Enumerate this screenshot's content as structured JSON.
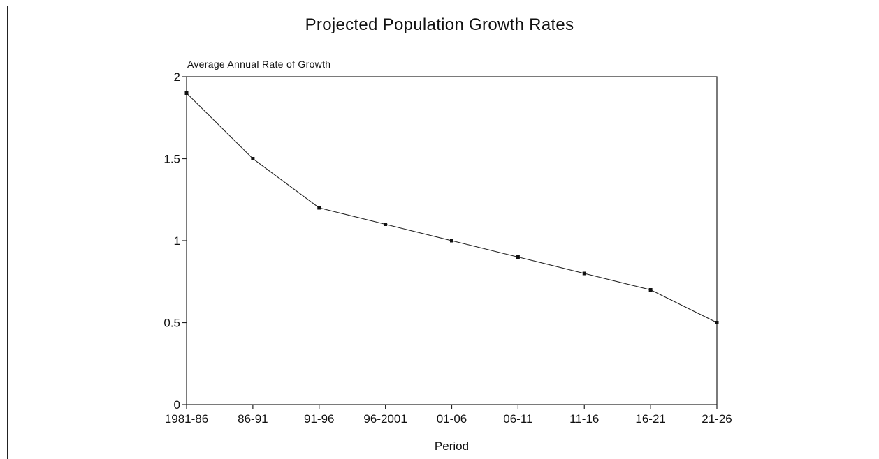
{
  "chart_data": {
    "type": "line",
    "title": "Projected Population Growth Rates",
    "ylabel": "Average Annual Rate of Growth",
    "xlabel": "Period",
    "categories": [
      "1981-86",
      "86-91",
      "91-96",
      "96-2001",
      "01-06",
      "06-11",
      "11-16",
      "16-21",
      "21-26"
    ],
    "values": [
      1.9,
      1.5,
      1.2,
      1.1,
      1.0,
      0.9,
      0.8,
      0.7,
      0.5
    ],
    "ylim": [
      0,
      2
    ],
    "yticks": [
      0,
      0.5,
      1,
      1.5,
      2
    ],
    "ytick_labels": [
      "0",
      "0.5",
      "1",
      "1.5",
      "2"
    ],
    "grid": false,
    "legend": "none"
  }
}
